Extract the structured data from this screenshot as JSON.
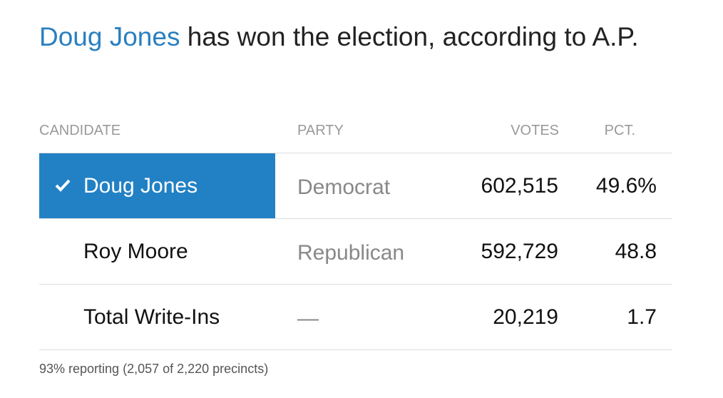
{
  "headline": {
    "winner": "Doug Jones",
    "text": "has won the election, according to A.P."
  },
  "table": {
    "headers": [
      "CANDIDATE",
      "PARTY",
      "VOTES",
      "PCT."
    ],
    "rows": [
      [
        "Doug Jones",
        "Democrat",
        "602,515",
        "49.6%"
      ],
      [
        "Roy Moore",
        "Republican",
        "592,729",
        "48.8"
      ],
      [
        "Total Write-Ins",
        "—",
        "20,219",
        "1.7"
      ]
    ]
  },
  "footer": "93% reporting (2,057 of 2,220 precincts)"
}
